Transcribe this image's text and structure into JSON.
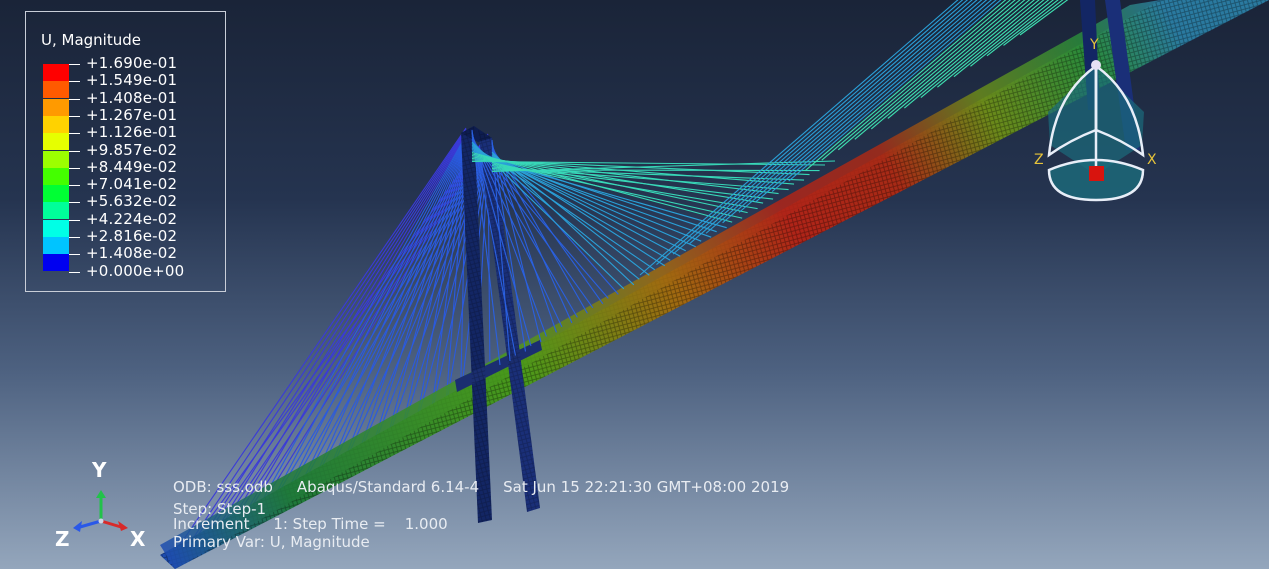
{
  "legend": {
    "title": "U, Magnitude",
    "entries": [
      {
        "value": "+1.690e-01",
        "color": "#ff0000"
      },
      {
        "value": "+1.549e-01",
        "color": "#ff5a00"
      },
      {
        "value": "+1.408e-01",
        "color": "#ff9a00"
      },
      {
        "value": "+1.267e-01",
        "color": "#ffd200"
      },
      {
        "value": "+1.126e-01",
        "color": "#e6ff00"
      },
      {
        "value": "+9.857e-02",
        "color": "#9cff00"
      },
      {
        "value": "+8.449e-02",
        "color": "#44ff00"
      },
      {
        "value": "+7.041e-02",
        "color": "#00ff34"
      },
      {
        "value": "+5.632e-02",
        "color": "#00ff9a"
      },
      {
        "value": "+4.224e-02",
        "color": "#00ffe6"
      },
      {
        "value": "+2.816e-02",
        "color": "#00c4ff"
      },
      {
        "value": "+1.408e-02",
        "color": "#005cff"
      },
      {
        "value": "+0.000e+00",
        "color": "#0000f0"
      }
    ]
  },
  "info": {
    "odb": "ODB: sss.odb",
    "solver": "Abaqus/Standard 6.14-4",
    "timestamp": "Sat Jun 15 22:21:30 GMT+08:00 2019",
    "step": "Step: Step-1",
    "increment": "Increment     1: Step Time =    1.000",
    "primary_var": "Primary Var: U, Magnitude"
  },
  "triad": {
    "y": "Y",
    "z": "Z",
    "x": "X"
  },
  "view_cube": {
    "y": "Y",
    "z": "Z",
    "x": "X"
  },
  "colors": {
    "bg_top": "#1a2438",
    "bg_bottom": "#94a6bc",
    "deck_high": "#c0301e",
    "deck_low": "#1f8a3a",
    "tower": "#142a6e",
    "cable_high": "#3ee0b0",
    "cable_low": "#2a50e0"
  }
}
